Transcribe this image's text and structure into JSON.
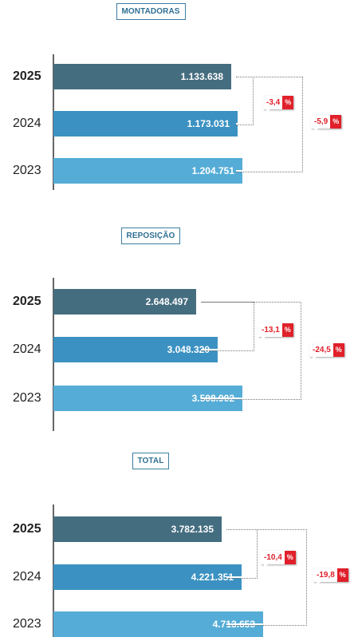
{
  "colors": {
    "bar_2025": "#456d80",
    "bar_2024": "#3b92c2",
    "bar_2023": "#55acd6",
    "badge": "#e0202a",
    "title": "#2f6f93"
  },
  "percent_symbol": "%",
  "chart_data": [
    {
      "type": "bar",
      "title": "MONTADORAS",
      "categories": [
        "2025",
        "2024",
        "2023"
      ],
      "values": [
        1133638,
        1173031,
        1204751
      ],
      "value_labels": [
        "1.133.638",
        "1.173.031",
        "1.204.751"
      ],
      "comparisons": [
        {
          "from": "2025",
          "to": "2024",
          "label": "-3,4"
        },
        {
          "from": "2025",
          "to": "2023",
          "label": "-5,9"
        }
      ]
    },
    {
      "type": "bar",
      "title": "REPOSIÇÃO",
      "categories": [
        "2025",
        "2024",
        "2023"
      ],
      "values": [
        2648497,
        3048320,
        3508902
      ],
      "value_labels": [
        "2.648.497",
        "3.048.320",
        "3.508.902"
      ],
      "comparisons": [
        {
          "from": "2025",
          "to": "2024",
          "label": "-13,1"
        },
        {
          "from": "2025",
          "to": "2023",
          "label": "-24,5"
        }
      ]
    },
    {
      "type": "bar",
      "title": "TOTAL",
      "categories": [
        "2025",
        "2024",
        "2023"
      ],
      "values": [
        3782135,
        4221351,
        4713653
      ],
      "value_labels": [
        "3.782.135",
        "4.221.351",
        "4.713.653"
      ],
      "comparisons": [
        {
          "from": "2025",
          "to": "2024",
          "label": "-10,4"
        },
        {
          "from": "2025",
          "to": "2023",
          "label": "-19,8"
        }
      ]
    }
  ]
}
